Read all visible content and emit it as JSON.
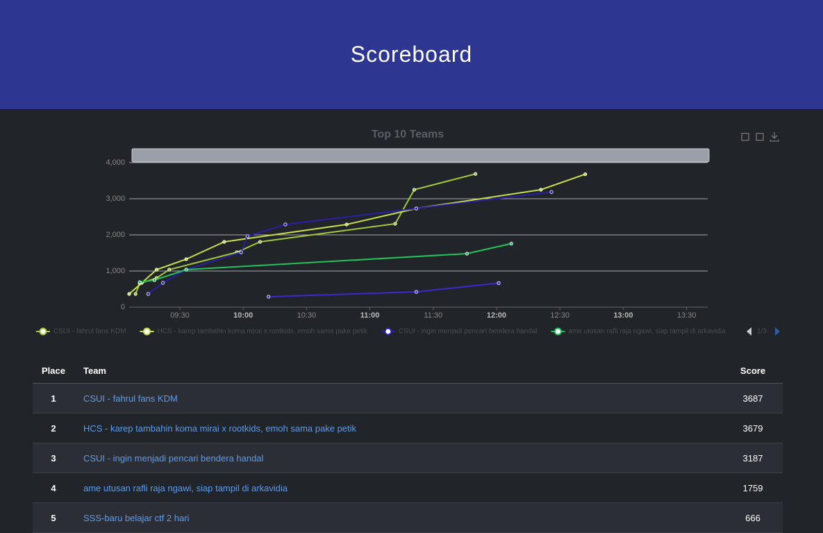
{
  "header": {
    "title": "Scoreboard"
  },
  "chart_data": {
    "type": "line",
    "title": "Top 10 Teams",
    "xlim": [
      "09:06",
      "13:40"
    ],
    "xticks": [
      "09:30",
      "10:00",
      "10:30",
      "11:00",
      "11:30",
      "12:00",
      "12:30",
      "13:00",
      "13:30"
    ],
    "ylim": [
      0,
      4000
    ],
    "yticks": [
      0,
      {
        "value": 1000,
        "label": "1,000"
      },
      {
        "value": 2000,
        "label": "2,000"
      },
      {
        "value": 3000,
        "label": "3,000"
      },
      {
        "value": 4000,
        "label": "4,000"
      }
    ],
    "grid": true,
    "legend_page": "1/3",
    "series": [
      {
        "name": "CSUI - fahrul fans KDM",
        "color": "#a4c93a",
        "x": [
          "09:09",
          "09:11",
          "09:19",
          "09:25",
          "09:57",
          "10:08",
          "11:12",
          "11:21",
          "11:50"
        ],
        "values": [
          365,
          654,
          808,
          1038,
          1519,
          1808,
          2308,
          3250,
          3687
        ]
      },
      {
        "name": "HCS - karep tambahin koma mirai x rootkids, emoh sama pake petik",
        "color": "#c8e04c",
        "x": [
          "09:06",
          "09:12",
          "09:19",
          "09:33",
          "09:51",
          "10:49",
          "11:22",
          "12:21",
          "12:42"
        ],
        "values": [
          365,
          673,
          1038,
          1327,
          1808,
          2288,
          2731,
          3250,
          3679
        ]
      },
      {
        "name": "CSUI - ingin menjadi pencari bendera handal",
        "color": "#2a1fa8",
        "x": [
          "09:15",
          "09:22",
          "09:33",
          "09:59",
          "10:02",
          "10:20",
          "11:22",
          "12:26"
        ],
        "values": [
          365,
          673,
          1038,
          1519,
          1962,
          2288,
          2731,
          3187
        ]
      },
      {
        "name": "ame utusan rafli raja ngawi, siap tampil di arkavidia",
        "color": "#22c55e",
        "x": [
          "09:11",
          "09:18",
          "09:33",
          "11:46",
          "12:07"
        ],
        "values": [
          692,
          750,
          1038,
          1481,
          1759
        ]
      },
      {
        "name": "SSS-baru belajar ctf 2 hari",
        "color": "#3a2ad0",
        "x": [
          "10:12",
          "11:22",
          "12:01"
        ],
        "values": [
          288,
          423,
          666
        ]
      }
    ]
  },
  "table": {
    "columns": [
      "Place",
      "Team",
      "Score"
    ],
    "rows": [
      [
        1,
        "CSUI - fahrul fans KDM",
        3687
      ],
      [
        2,
        "HCS - karep tambahin koma mirai x rootkids, emoh sama pake petik",
        3679
      ],
      [
        3,
        "CSUI - ingin menjadi pencari bendera handal",
        3187
      ],
      [
        4,
        "ame utusan rafli raja ngawi, siap tampil di arkavidia",
        1759
      ],
      [
        5,
        "SSS-baru belajar ctf 2 hari",
        666
      ]
    ]
  }
}
